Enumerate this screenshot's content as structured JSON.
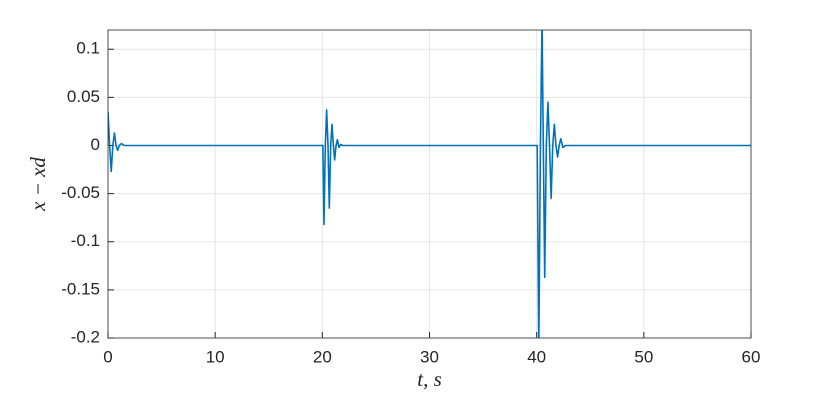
{
  "chart_data": {
    "type": "line",
    "xlabel": "t, s",
    "ylabel": "x − xd",
    "x": [
      0,
      0.15,
      0.3,
      0.45,
      0.6,
      0.75,
      0.9,
      1.05,
      1.25,
      1.5,
      20,
      20.05,
      20.15,
      20.28,
      20.4,
      20.53,
      20.65,
      20.78,
      20.9,
      21.03,
      21.15,
      21.28,
      21.4,
      21.55,
      21.7,
      21.9,
      40,
      40.05,
      40.2,
      40.35,
      40.5,
      40.62,
      40.75,
      40.9,
      41.05,
      41.2,
      41.35,
      41.5,
      41.65,
      41.8,
      41.95,
      42.1,
      42.25,
      42.45,
      42.7,
      60
    ],
    "values": [
      0.035,
      0,
      -0.027,
      0,
      0.013,
      0,
      -0.005,
      0,
      0.002,
      0,
      0,
      0,
      -0.082,
      0,
      0.037,
      0,
      -0.065,
      0,
      0.022,
      0,
      -0.015,
      0,
      0.006,
      -0.002,
      0.001,
      0,
      0,
      0,
      -0.21,
      0,
      0.13,
      0,
      -0.137,
      0,
      0.045,
      0,
      -0.055,
      0,
      0.022,
      0,
      -0.012,
      0,
      0.007,
      -0.002,
      0,
      0
    ],
    "color": "#0072bd",
    "xlim": [
      0,
      60
    ],
    "xticks": [
      0,
      10,
      20,
      30,
      40,
      50,
      60
    ],
    "ylim": [
      -0.2,
      0.12
    ],
    "yticks": [
      -0.2,
      -0.15,
      -0.1,
      -0.05,
      0,
      0.05,
      0.1
    ],
    "grid": true
  }
}
